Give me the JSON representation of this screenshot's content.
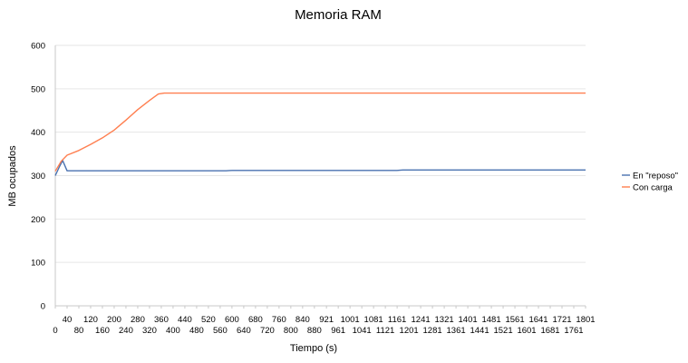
{
  "chart_data": {
    "type": "line",
    "title": "Memoria RAM",
    "xlabel": "Tiempo (s)",
    "ylabel": "MB ocupados",
    "xlim": [
      0,
      1801
    ],
    "ylim": [
      0,
      600
    ],
    "yticks": [
      0,
      100,
      200,
      300,
      400,
      500,
      600
    ],
    "xticks": [
      0,
      40,
      80,
      120,
      160,
      200,
      240,
      280,
      320,
      360,
      400,
      440,
      480,
      520,
      560,
      600,
      640,
      680,
      720,
      760,
      800,
      840,
      880,
      921,
      961,
      1001,
      1041,
      1081,
      1121,
      1161,
      1201,
      1241,
      1281,
      1321,
      1361,
      1401,
      1441,
      1481,
      1521,
      1561,
      1601,
      1641,
      1681,
      1721,
      1761,
      1801
    ],
    "grid": true,
    "legend": "right",
    "series": [
      {
        "name": "En \"reposo\"",
        "color": "#4a72b0",
        "x": [
          0,
          15,
          25,
          40,
          80,
          200,
          400,
          580,
          600,
          800,
          1000,
          1160,
          1180,
          1400,
          1600,
          1801
        ],
        "values": [
          300,
          322,
          335,
          311,
          311,
          311,
          311,
          311,
          312,
          312,
          312,
          312,
          313,
          313,
          313,
          313
        ]
      },
      {
        "name": "Con carga",
        "color": "#ff7f50",
        "x": [
          0,
          20,
          40,
          80,
          120,
          160,
          200,
          240,
          280,
          320,
          350,
          370,
          400,
          500,
          640,
          840,
          1080,
          1280,
          1801
        ],
        "values": [
          310,
          333,
          347,
          358,
          372,
          387,
          405,
          428,
          452,
          473,
          488,
          490,
          490,
          490,
          490,
          490,
          490,
          490,
          490
        ]
      }
    ]
  }
}
